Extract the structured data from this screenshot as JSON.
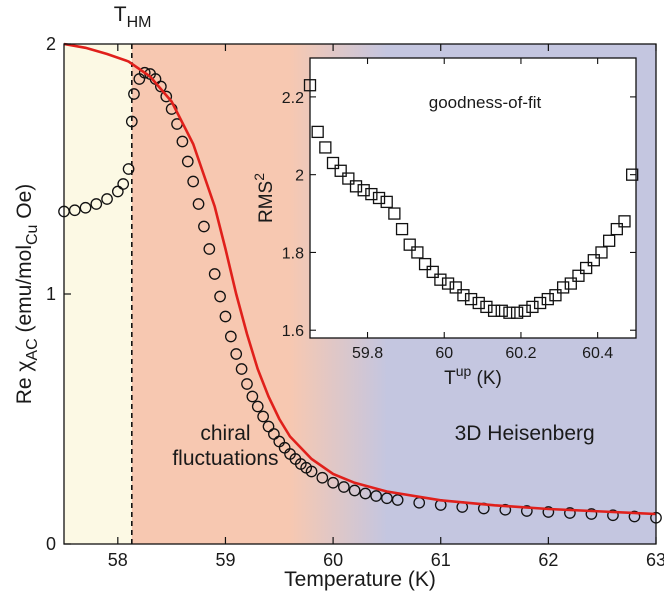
{
  "chart_data": [
    {
      "type": "scatter",
      "role": "main",
      "xlabel": "Temperature (K)",
      "ylabel_parts": {
        "prefix": "Re χ",
        "sub1": "AC",
        "mid": " (emu/mol",
        "sub2": "Cu",
        "suffix": " Oe)"
      },
      "xlim": [
        57.5,
        63
      ],
      "ylim": [
        0,
        2
      ],
      "xticks": [
        58,
        59,
        60,
        61,
        62,
        63
      ],
      "yticks": [
        0,
        1,
        2
      ],
      "marker": "open-circle",
      "marker_color": "#111111",
      "fit_color": "#e0201b",
      "transition": {
        "label_main": "T",
        "label_sub": "HM",
        "x": 58.13,
        "line_style": "dashed"
      },
      "regions": [
        {
          "name": "mean-field",
          "x_range": [
            57.5,
            58.13
          ],
          "color": "#fcf9e4",
          "label": ""
        },
        {
          "name": "chiral",
          "x_range": [
            58.13,
            59.6
          ],
          "color": "#f7c8b1",
          "label_lines": [
            "chiral",
            "fluctuations"
          ]
        },
        {
          "name": "heisenberg",
          "x_range": [
            60.5,
            63
          ],
          "color": "#c4c6e0",
          "label_lines": [
            "3D Heisenberg"
          ]
        }
      ],
      "series": [
        {
          "kind": "data",
          "x": [
            57.5,
            57.6,
            57.7,
            57.8,
            57.9,
            58.0,
            58.05,
            58.1,
            58.13,
            58.15,
            58.2,
            58.25,
            58.3,
            58.35,
            58.4,
            58.45,
            58.5,
            58.55,
            58.6,
            58.65,
            58.7,
            58.75,
            58.8,
            58.85,
            58.9,
            58.95,
            59.0,
            59.05,
            59.1,
            59.15,
            59.2,
            59.25,
            59.3,
            59.35,
            59.4,
            59.45,
            59.5,
            59.55,
            59.6,
            59.65,
            59.7,
            59.75,
            59.8,
            59.9,
            60.0,
            60.1,
            60.2,
            60.3,
            60.4,
            60.5,
            60.6,
            60.8,
            61.0,
            61.2,
            61.4,
            61.6,
            61.8,
            62.0,
            62.2,
            62.4,
            62.6,
            62.8,
            63.0
          ],
          "y": [
            1.33,
            1.335,
            1.345,
            1.36,
            1.38,
            1.41,
            1.44,
            1.5,
            1.69,
            1.8,
            1.86,
            1.885,
            1.88,
            1.86,
            1.83,
            1.79,
            1.74,
            1.68,
            1.61,
            1.53,
            1.45,
            1.36,
            1.27,
            1.18,
            1.08,
            0.99,
            0.91,
            0.83,
            0.76,
            0.7,
            0.64,
            0.59,
            0.55,
            0.51,
            0.47,
            0.44,
            0.41,
            0.385,
            0.36,
            0.34,
            0.32,
            0.305,
            0.29,
            0.265,
            0.245,
            0.228,
            0.214,
            0.202,
            0.192,
            0.183,
            0.176,
            0.165,
            0.156,
            0.148,
            0.142,
            0.137,
            0.132,
            0.128,
            0.124,
            0.12,
            0.115,
            0.11,
            0.105
          ]
        },
        {
          "kind": "fit",
          "x": [
            57.5,
            57.7,
            57.9,
            58.1,
            58.3,
            58.5,
            58.7,
            58.9,
            59.0,
            59.1,
            59.2,
            59.3,
            59.4,
            59.5,
            59.6,
            59.8,
            60.0,
            60.2,
            60.5,
            61.0,
            61.5,
            62.0,
            62.5,
            63.0
          ],
          "y": [
            2.0,
            1.985,
            1.96,
            1.93,
            1.87,
            1.77,
            1.6,
            1.35,
            1.18,
            1.0,
            0.84,
            0.7,
            0.59,
            0.5,
            0.43,
            0.34,
            0.28,
            0.245,
            0.21,
            0.175,
            0.155,
            0.14,
            0.13,
            0.12
          ]
        }
      ]
    },
    {
      "type": "scatter",
      "role": "inset",
      "title": "goodness-of-fit",
      "xlabel_parts": {
        "base": "T",
        "sup": "up",
        "suffix": " (K)"
      },
      "ylabel_parts": {
        "base": "RMS",
        "sup": "2"
      },
      "xlim": [
        59.65,
        60.5
      ],
      "ylim": [
        1.58,
        2.3
      ],
      "xticks": [
        59.8,
        60,
        60.2,
        60.4
      ],
      "xtick_labels": [
        "59.8",
        "60",
        "60.2",
        "60.4"
      ],
      "yticks": [
        1.6,
        1.8,
        2.0,
        2.2
      ],
      "ytick_labels": [
        "1.6",
        "1.8",
        "2",
        "2.2"
      ],
      "marker": "open-square",
      "x": [
        59.65,
        59.67,
        59.69,
        59.71,
        59.73,
        59.75,
        59.77,
        59.79,
        59.81,
        59.83,
        59.85,
        59.87,
        59.89,
        59.91,
        59.93,
        59.95,
        59.97,
        59.99,
        60.01,
        60.03,
        60.05,
        60.07,
        60.09,
        60.11,
        60.13,
        60.15,
        60.17,
        60.19,
        60.21,
        60.23,
        60.25,
        60.27,
        60.29,
        60.31,
        60.33,
        60.35,
        60.37,
        60.39,
        60.41,
        60.43,
        60.45,
        60.47
      ],
      "y": [
        2.23,
        2.11,
        2.07,
        2.03,
        2.01,
        1.99,
        1.97,
        1.96,
        1.95,
        1.94,
        1.93,
        1.9,
        1.86,
        1.82,
        1.8,
        1.77,
        1.75,
        1.73,
        1.72,
        1.71,
        1.69,
        1.68,
        1.67,
        1.66,
        1.65,
        1.65,
        1.645,
        1.645,
        1.65,
        1.66,
        1.67,
        1.68,
        1.69,
        1.71,
        1.72,
        1.74,
        1.76,
        1.78,
        1.8,
        1.83,
        1.86,
        1.88
      ]
    }
  ],
  "inset_extra_point": {
    "x": 60.49,
    "y": 2.0
  }
}
